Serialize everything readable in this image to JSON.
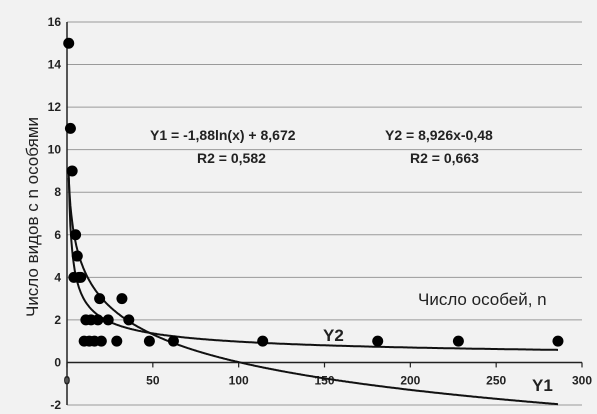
{
  "chart_data": {
    "type": "scatter",
    "xlabel": "Число особей, n",
    "ylabel": "Число видов с n особями",
    "xlim": [
      0,
      300
    ],
    "ylim": [
      -2,
      16
    ],
    "x_ticks": [
      0,
      50,
      100,
      150,
      200,
      250,
      300
    ],
    "y_ticks": [
      -2,
      0,
      2,
      4,
      6,
      8,
      10,
      12,
      14,
      16
    ],
    "grid": "horizontal",
    "points": [
      {
        "x": 1,
        "y": 15
      },
      {
        "x": 2,
        "y": 11
      },
      {
        "x": 3,
        "y": 9
      },
      {
        "x": 4,
        "y": 4
      },
      {
        "x": 5,
        "y": 6
      },
      {
        "x": 6,
        "y": 5
      },
      {
        "x": 7,
        "y": 4
      },
      {
        "x": 8,
        "y": 4
      },
      {
        "x": 10,
        "y": 1
      },
      {
        "x": 11,
        "y": 2
      },
      {
        "x": 13,
        "y": 1
      },
      {
        "x": 14,
        "y": 2
      },
      {
        "x": 16,
        "y": 1
      },
      {
        "x": 18,
        "y": 2
      },
      {
        "x": 19,
        "y": 3
      },
      {
        "x": 20,
        "y": 1
      },
      {
        "x": 24,
        "y": 2
      },
      {
        "x": 29,
        "y": 1
      },
      {
        "x": 32,
        "y": 3
      },
      {
        "x": 36,
        "y": 2
      },
      {
        "x": 48,
        "y": 1
      },
      {
        "x": 62,
        "y": 1
      },
      {
        "x": 114,
        "y": 1
      },
      {
        "x": 181,
        "y": 1
      },
      {
        "x": 228,
        "y": 1
      },
      {
        "x": 286,
        "y": 1
      }
    ],
    "trendlines": [
      {
        "name": "Y1",
        "kind": "log",
        "a": -1.88,
        "b": 8.672,
        "equation": "Y1 = -1,88ln(x) + 8,672",
        "r2": "R2 = 0,582"
      },
      {
        "name": "Y2",
        "kind": "power",
        "a": 8.926,
        "b": -0.48,
        "equation": "Y2 = 8,926x-0,48",
        "r2": "R2 = 0,663"
      }
    ]
  }
}
